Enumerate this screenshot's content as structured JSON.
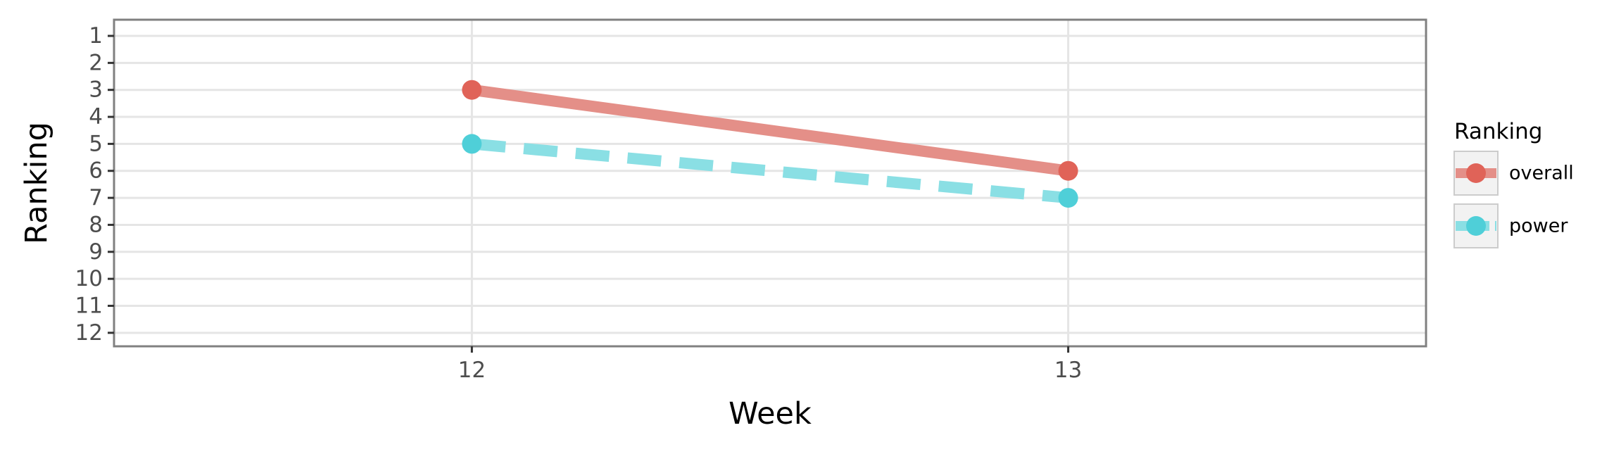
{
  "chart_data": {
    "type": "line",
    "title": "",
    "xlabel": "Week",
    "ylabel": "Ranking",
    "x": [
      12,
      13
    ],
    "x_ticks": [
      "12",
      "13"
    ],
    "xlim": [
      11.4,
      13.6
    ],
    "y_ticks": [
      "1",
      "2",
      "3",
      "4",
      "5",
      "6",
      "7",
      "8",
      "9",
      "10",
      "11",
      "12"
    ],
    "ylim": [
      12.5,
      0.4
    ],
    "y_reversed": true,
    "grid": true,
    "legend": {
      "title": "Ranking",
      "placement": "right"
    },
    "series": [
      {
        "name": "overall",
        "values": [
          3,
          6
        ],
        "color": "#e06358",
        "line_color": "#e48f88",
        "line_style": "solid"
      },
      {
        "name": "power",
        "values": [
          5,
          7
        ],
        "color": "#4fcfd8",
        "line_color": "#8adfe4",
        "line_style": "dashed"
      }
    ]
  },
  "colors": {
    "grid": "#e5e5e5",
    "panel_border": "#808080",
    "tick_text": "#4d4d4d",
    "axis_title": "#000000",
    "legend_key_bg": "#f2f2f2"
  }
}
